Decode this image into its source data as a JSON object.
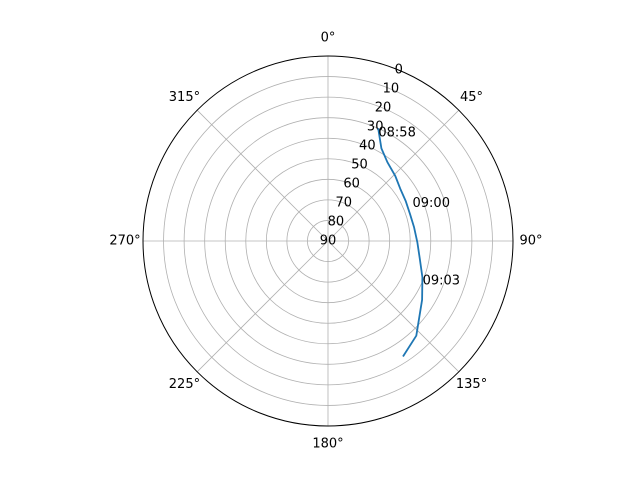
{
  "chart_data": {
    "type": "polar-line",
    "theta_zero": "N",
    "theta_direction": "clockwise",
    "theta_ticks": [
      {
        "deg": 0,
        "label": "0°"
      },
      {
        "deg": 45,
        "label": "45°"
      },
      {
        "deg": 90,
        "label": "90°"
      },
      {
        "deg": 135,
        "label": "135°"
      },
      {
        "deg": 180,
        "label": "180°"
      },
      {
        "deg": 225,
        "label": "225°"
      },
      {
        "deg": 270,
        "label": "270°"
      },
      {
        "deg": 315,
        "label": "315°"
      }
    ],
    "r_ticks": [
      0,
      10,
      20,
      30,
      40,
      50,
      60,
      70,
      80,
      90
    ],
    "r_label_angle_deg": 22.5,
    "r_scale": "elevation (0 outer, 90 center)",
    "grid": true,
    "series": [
      {
        "color": "#1f77b4",
        "points": [
          {
            "az": 24,
            "el": 30
          },
          {
            "az": 30,
            "el": 38
          },
          {
            "az": 37,
            "el": 42
          },
          {
            "az": 46,
            "el": 44.5
          },
          {
            "az": 54,
            "el": 46.6
          },
          {
            "az": 63,
            "el": 47.5
          },
          {
            "az": 72,
            "el": 48
          },
          {
            "az": 81,
            "el": 47.6
          },
          {
            "az": 91,
            "el": 46.5
          },
          {
            "az": 101,
            "el": 44.5
          },
          {
            "az": 111,
            "el": 40.8
          },
          {
            "az": 122,
            "el": 36
          },
          {
            "az": 137,
            "el": 27
          },
          {
            "az": 147,
            "el": 23
          }
        ]
      }
    ],
    "annotations": [
      {
        "text": "08:58",
        "az": 25,
        "el": 32
      },
      {
        "text": "09:00",
        "az": 66,
        "el": 45
      },
      {
        "text": "09:03",
        "az": 113,
        "el": 40
      }
    ]
  }
}
